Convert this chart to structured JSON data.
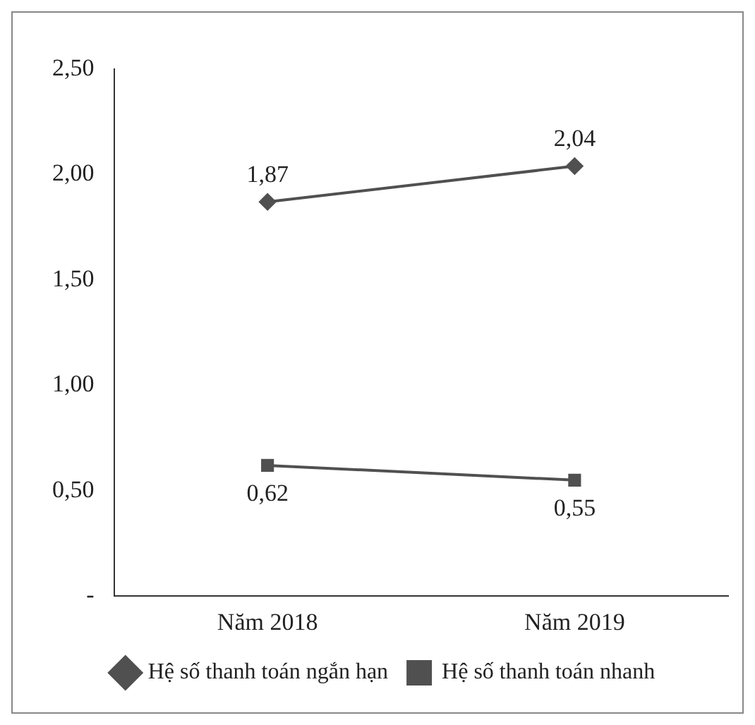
{
  "chart_data": {
    "type": "line",
    "categories": [
      "Năm 2018",
      "Năm 2019"
    ],
    "series": [
      {
        "name": "Hệ số thanh toán ngắn hạn",
        "color": "#505050",
        "marker": "diamond",
        "values": [
          1.87,
          2.04
        ],
        "value_labels": [
          "1,87",
          "2,04"
        ]
      },
      {
        "name": "Hệ số thanh toán nhanh",
        "color": "#505050",
        "marker": "square",
        "values": [
          0.62,
          0.55
        ],
        "value_labels": [
          "0,62",
          "0,55"
        ]
      }
    ],
    "ylim": [
      0,
      2.5
    ],
    "yticks": [
      {
        "value": 0,
        "label": "-"
      },
      {
        "value": 0.5,
        "label": "0,50"
      },
      {
        "value": 1,
        "label": "1,00"
      },
      {
        "value": 1.5,
        "label": "1,50"
      },
      {
        "value": 2,
        "label": "2,00"
      },
      {
        "value": 2.5,
        "label": "2,50"
      }
    ],
    "grid": false,
    "legend": "bottom",
    "line_style": "solid"
  }
}
